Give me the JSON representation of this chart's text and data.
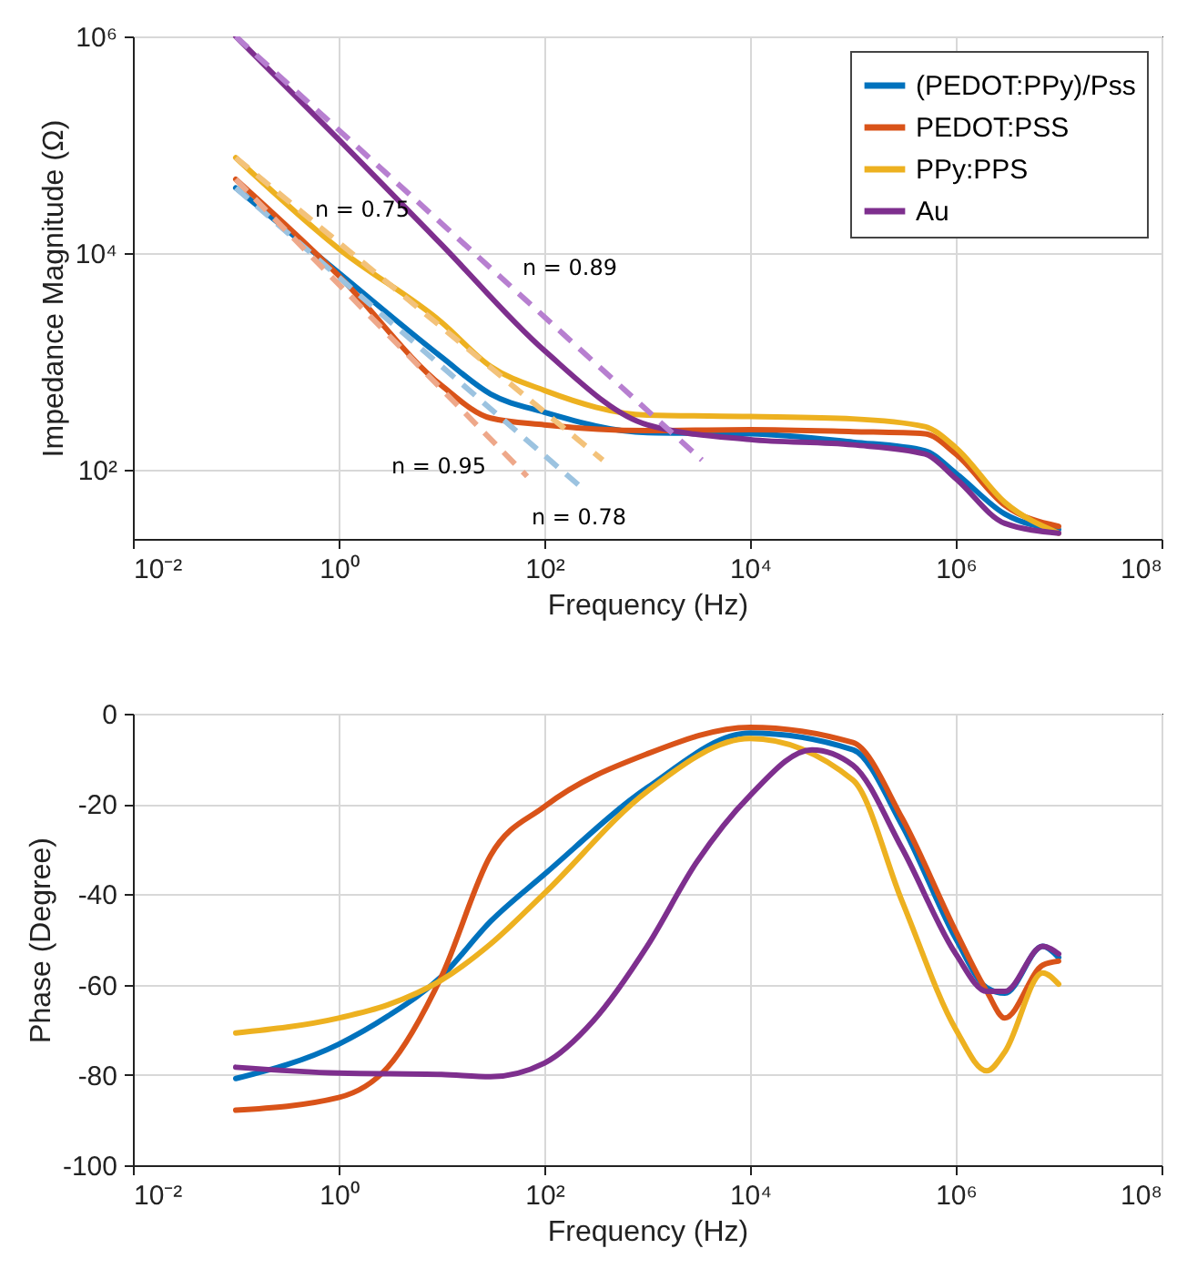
{
  "chart_data": [
    {
      "type": "line",
      "xlabel": "Frequency (Hz)",
      "ylabel": "Impedance Magnitude (Ω)",
      "log": "xy",
      "grid": true,
      "legend": "top right",
      "xlim": [
        0.01,
        100000000
      ],
      "xticks": [
        {
          "value": 0.01,
          "label": "10⁻²"
        },
        {
          "value": 1,
          "label": "10⁰"
        },
        {
          "value": 100,
          "label": "10²"
        },
        {
          "value": 10000,
          "label": "10⁴"
        },
        {
          "value": 1000000,
          "label": "10⁶"
        },
        {
          "value": 100000000,
          "label": "10⁸"
        }
      ],
      "ylim": [
        23,
        1000000
      ],
      "yticks": [
        {
          "value": 100,
          "label": "10²"
        },
        {
          "value": 10000,
          "label": "10⁴"
        },
        {
          "value": 1000000,
          "label": "10⁶"
        }
      ],
      "series": [
        {
          "name": "(PEDOT:PPy)/Pss",
          "color": "#0072bd",
          "x": [
            0.1,
            1,
            10,
            30,
            100,
            1000,
            10000,
            100000,
            500000,
            1000000,
            3000000,
            10000000
          ],
          "values": [
            40000,
            6600,
            1100,
            500,
            340,
            220,
            215,
            180,
            150,
            93,
            39,
            28
          ]
        },
        {
          "name": "PEDOT:PSS",
          "color": "#d95319",
          "x": [
            0.1,
            1,
            10,
            30,
            100,
            1000,
            10000,
            100000,
            500000,
            1000000,
            3000000,
            10000000
          ],
          "values": [
            48000,
            6200,
            600,
            300,
            260,
            230,
            235,
            225,
            215,
            140,
            47,
            30
          ]
        },
        {
          "name": "PPy:PPS",
          "color": "#edb120",
          "x": [
            0.1,
            1,
            10,
            30,
            100,
            1000,
            10000,
            100000,
            500000,
            1000000,
            3000000,
            10000000
          ],
          "values": [
            76000,
            11000,
            2300,
            900,
            540,
            320,
            310,
            295,
            250,
            160,
            50,
            26
          ]
        },
        {
          "name": "Au",
          "color": "#7e2f8e",
          "x": [
            0.1,
            1,
            10,
            100,
            1000,
            10000,
            100000,
            500000,
            1000000,
            3000000,
            10000000
          ],
          "values": [
            1000000,
            112000,
            12000,
            1260,
            260,
            190,
            170,
            140,
            83,
            32,
            26
          ]
        },
        {
          "color": "#f3c27a",
          "line_style": "dashed",
          "x": [
            0.1,
            370
          ],
          "values": [
            76000,
            123
          ]
        },
        {
          "color": "#9cc3e0",
          "line_style": "dashed",
          "x": [
            0.1,
            220
          ],
          "values": [
            40000,
            71
          ]
        },
        {
          "color": "#eea88a",
          "line_style": "dashed",
          "x": [
            0.1,
            68
          ],
          "values": [
            48000,
            87
          ]
        },
        {
          "color": "#b77fd0",
          "line_style": "dashed",
          "x": [
            0.1,
            3400
          ],
          "values": [
            1000000,
            123
          ]
        }
      ],
      "annotations": [
        "n = 0.75",
        "n = 0.89",
        "n = 0.95",
        "n = 0.78"
      ]
    },
    {
      "type": "line",
      "xlabel": "Frequency (Hz)",
      "ylabel": "Phase (Degree)",
      "log": "x",
      "grid": true,
      "xlim": [
        0.01,
        100000000
      ],
      "xticks": [
        {
          "value": 0.01,
          "label": "10⁻²"
        },
        {
          "value": 1,
          "label": "10⁰"
        },
        {
          "value": 100,
          "label": "10²"
        },
        {
          "value": 10000,
          "label": "10⁴"
        },
        {
          "value": 1000000,
          "label": "10⁶"
        },
        {
          "value": 100000000,
          "label": "10⁸"
        }
      ],
      "ylim": [
        -100,
        0
      ],
      "yticks": [
        -100,
        -80,
        -60,
        -40,
        -20,
        0
      ],
      "series": [
        {
          "color": "#0072bd",
          "x": [
            0.1,
            1,
            3,
            10,
            30,
            100,
            1000,
            10000,
            100000,
            300000,
            1000000,
            2000000,
            3000000,
            7000000,
            10000000
          ],
          "values": [
            -80.8,
            -73.2,
            -67,
            -58.2,
            -46,
            -35.6,
            -16.4,
            -4.3,
            -8,
            -24.7,
            -49.8,
            -60.7,
            -61.9,
            -51.5,
            -54
          ]
        },
        {
          "color": "#d95319",
          "x": [
            0.1,
            1,
            3,
            10,
            30,
            100,
            1000,
            10000,
            100000,
            300000,
            1000000,
            2000000,
            3000000,
            7000000,
            10000000
          ],
          "values": [
            -87.8,
            -85,
            -78.3,
            -58.2,
            -31.4,
            -20.6,
            -8.9,
            -3,
            -6.4,
            -23.1,
            -48.2,
            -61.5,
            -67.4,
            -55.7,
            -54.8
          ]
        },
        {
          "color": "#edb120",
          "x": [
            0.1,
            1,
            3,
            10,
            30,
            100,
            1000,
            10000,
            100000,
            300000,
            1000000,
            2000000,
            3000000,
            7000000,
            10000000
          ],
          "values": [
            -70.7,
            -67.4,
            -64.5,
            -59,
            -51,
            -39.8,
            -17.2,
            -5.5,
            -14.7,
            -41.5,
            -69.9,
            -79.1,
            -74.9,
            -57.4,
            -59.9
          ]
        },
        {
          "color": "#7e2f8e",
          "x": [
            0.1,
            1,
            10,
            30,
            100,
            300,
            1000,
            3000,
            10000,
            40000,
            100000,
            300000,
            1000000,
            2000000,
            3000000,
            7000000,
            10000000
          ],
          "values": [
            -78.3,
            -79.6,
            -79.9,
            -80.4,
            -77.4,
            -68,
            -51.5,
            -33,
            -18.1,
            -8,
            -11.4,
            -29.8,
            -53.2,
            -61.5,
            -61.5,
            -51.5,
            -53.2
          ]
        }
      ]
    }
  ]
}
